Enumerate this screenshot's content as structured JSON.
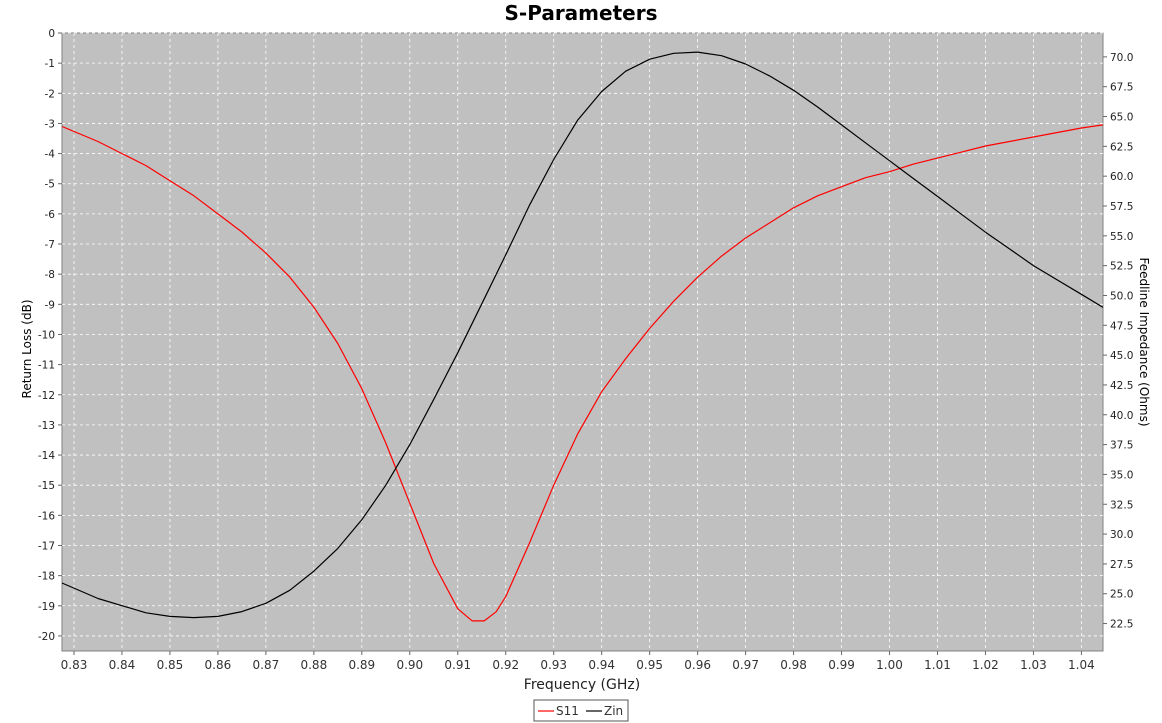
{
  "chart_data": {
    "type": "line",
    "title": "S-Parameters",
    "xlabel": "Frequency (GHz)",
    "ylabel_left": "Return Loss (dB)",
    "ylabel_right": "Feedline Impedance (Ohms)",
    "xlim": [
      0.8275,
      1.0445
    ],
    "ylim_left": [
      -20.5,
      0
    ],
    "ylim_right": [
      20.2,
      72.0
    ],
    "x_ticks": [
      "0.83",
      "0.84",
      "0.85",
      "0.86",
      "0.87",
      "0.88",
      "0.89",
      "0.90",
      "0.91",
      "0.92",
      "0.93",
      "0.94",
      "0.95",
      "0.96",
      "0.97",
      "0.98",
      "0.99",
      "1.00",
      "1.01",
      "1.02",
      "1.03",
      "1.04"
    ],
    "y_left_ticks": [
      "0",
      "-1",
      "-2",
      "-3",
      "-4",
      "-5",
      "-6",
      "-7",
      "-8",
      "-9",
      "-10",
      "-11",
      "-12",
      "-13",
      "-14",
      "-15",
      "-16",
      "-17",
      "-18",
      "-19",
      "-20"
    ],
    "y_right_ticks": [
      "22.5",
      "25.0",
      "27.5",
      "30.0",
      "32.5",
      "35.0",
      "37.5",
      "40.0",
      "42.5",
      "45.0",
      "47.5",
      "50.0",
      "52.5",
      "55.0",
      "57.5",
      "60.0",
      "62.5",
      "65.0",
      "67.5",
      "70.0"
    ],
    "grid": true,
    "legend_position": "bottom-center",
    "series": [
      {
        "name": "S11",
        "axis": "left",
        "color": "#ff0000",
        "x": [
          0.8275,
          0.835,
          0.84,
          0.845,
          0.85,
          0.855,
          0.86,
          0.865,
          0.87,
          0.875,
          0.88,
          0.885,
          0.89,
          0.895,
          0.9,
          0.905,
          0.91,
          0.913,
          0.9155,
          0.918,
          0.92,
          0.925,
          0.93,
          0.935,
          0.94,
          0.945,
          0.95,
          0.955,
          0.96,
          0.965,
          0.97,
          0.975,
          0.98,
          0.985,
          0.99,
          0.995,
          1.0,
          1.005,
          1.01,
          1.015,
          1.02,
          1.025,
          1.03,
          1.035,
          1.04,
          1.0445
        ],
        "y": [
          -3.1,
          -3.6,
          -4.0,
          -4.4,
          -4.9,
          -5.4,
          -6.0,
          -6.6,
          -7.3,
          -8.1,
          -9.1,
          -10.3,
          -11.8,
          -13.6,
          -15.6,
          -17.6,
          -19.1,
          -19.5,
          -19.5,
          -19.2,
          -18.7,
          -16.9,
          -15.0,
          -13.3,
          -11.9,
          -10.8,
          -9.8,
          -8.9,
          -8.1,
          -7.4,
          -6.8,
          -6.3,
          -5.8,
          -5.4,
          -5.1,
          -4.8,
          -4.6,
          -4.35,
          -4.15,
          -3.95,
          -3.75,
          -3.6,
          -3.45,
          -3.3,
          -3.15,
          -3.05
        ]
      },
      {
        "name": "Zin",
        "axis": "right",
        "color": "#000000",
        "x": [
          0.8275,
          0.835,
          0.84,
          0.845,
          0.85,
          0.855,
          0.86,
          0.865,
          0.87,
          0.875,
          0.88,
          0.885,
          0.89,
          0.895,
          0.9,
          0.905,
          0.91,
          0.915,
          0.92,
          0.925,
          0.93,
          0.935,
          0.94,
          0.945,
          0.95,
          0.955,
          0.96,
          0.965,
          0.97,
          0.975,
          0.98,
          0.985,
          0.99,
          0.995,
          1.0,
          1.005,
          1.01,
          1.015,
          1.02,
          1.025,
          1.03,
          1.035,
          1.04,
          1.0445
        ],
        "y": [
          25.9,
          24.6,
          24.0,
          23.4,
          23.1,
          23.0,
          23.1,
          23.5,
          24.2,
          25.3,
          26.9,
          28.8,
          31.2,
          34.1,
          37.5,
          41.3,
          45.2,
          49.3,
          53.4,
          57.6,
          61.4,
          64.7,
          67.1,
          68.8,
          69.8,
          70.3,
          70.4,
          70.1,
          69.4,
          68.4,
          67.2,
          65.8,
          64.3,
          62.8,
          61.3,
          59.8,
          58.3,
          56.8,
          55.3,
          53.9,
          52.5,
          51.3,
          50.1,
          49.0
        ]
      }
    ]
  }
}
